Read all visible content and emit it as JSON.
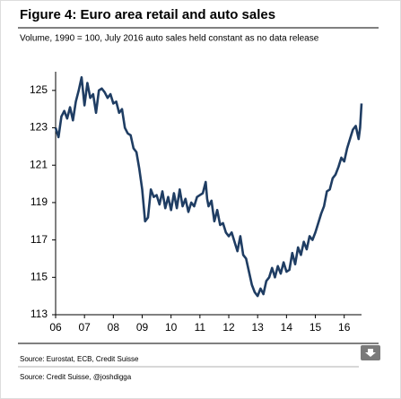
{
  "chart_data": {
    "type": "line",
    "title": "Figure 4: Euro area retail and auto sales",
    "subtitle": "Volume, 1990 = 100, July 2016 auto sales held constant as no data release",
    "source": "Source: Eurostat, ECB, Credit Suisse",
    "xlim": [
      2006,
      2016.6
    ],
    "xticks": [
      {
        "value": 2006,
        "label": "06"
      },
      {
        "value": 2007,
        "label": "07"
      },
      {
        "value": 2008,
        "label": "08"
      },
      {
        "value": 2009,
        "label": "09"
      },
      {
        "value": 2010,
        "label": "10"
      },
      {
        "value": 2011,
        "label": "11"
      },
      {
        "value": 2012,
        "label": "12"
      },
      {
        "value": 2013,
        "label": "13"
      },
      {
        "value": 2014,
        "label": "14"
      },
      {
        "value": 2015,
        "label": "15"
      },
      {
        "value": 2016,
        "label": "16"
      }
    ],
    "ylim": [
      113,
      126
    ],
    "yticks": [
      113,
      115,
      117,
      119,
      121,
      123,
      125
    ],
    "x": [
      2006.0,
      2006.1,
      2006.2,
      2006.3,
      2006.4,
      2006.5,
      2006.6,
      2006.7,
      2006.8,
      2006.9,
      2007.0,
      2007.1,
      2007.2,
      2007.3,
      2007.4,
      2007.5,
      2007.6,
      2007.7,
      2007.8,
      2007.9,
      2008.0,
      2008.1,
      2008.2,
      2008.3,
      2008.4,
      2008.5,
      2008.6,
      2008.7,
      2008.8,
      2008.9,
      2009.0,
      2009.1,
      2009.2,
      2009.3,
      2009.4,
      2009.5,
      2009.6,
      2009.7,
      2009.8,
      2009.9,
      2010.0,
      2010.1,
      2010.2,
      2010.3,
      2010.4,
      2010.5,
      2010.6,
      2010.7,
      2010.8,
      2010.9,
      2011.0,
      2011.1,
      2011.2,
      2011.25,
      2011.3,
      2011.4,
      2011.5,
      2011.6,
      2011.7,
      2011.8,
      2011.9,
      2012.0,
      2012.1,
      2012.2,
      2012.3,
      2012.4,
      2012.5,
      2012.6,
      2012.7,
      2012.8,
      2012.9,
      2013.0,
      2013.1,
      2013.2,
      2013.3,
      2013.4,
      2013.5,
      2013.6,
      2013.7,
      2013.8,
      2013.9,
      2014.0,
      2014.1,
      2014.2,
      2014.3,
      2014.4,
      2014.5,
      2014.6,
      2014.7,
      2014.8,
      2014.9,
      2015.0,
      2015.1,
      2015.2,
      2015.3,
      2015.4,
      2015.5,
      2015.6,
      2015.7,
      2015.8,
      2015.9,
      2016.0,
      2016.1,
      2016.2,
      2016.3,
      2016.4,
      2016.5,
      2016.55,
      2016.6
    ],
    "series": [
      {
        "color": "#1f3d63",
        "values": [
          123.0,
          122.5,
          123.6,
          123.9,
          123.5,
          124.1,
          123.4,
          124.4,
          125.0,
          125.7,
          124.2,
          125.4,
          124.6,
          124.8,
          123.8,
          125.0,
          125.1,
          124.9,
          124.6,
          124.8,
          124.3,
          124.4,
          123.8,
          124.0,
          123.0,
          122.7,
          122.6,
          121.9,
          121.7,
          120.8,
          119.7,
          118.0,
          118.2,
          119.7,
          119.3,
          119.4,
          118.9,
          119.6,
          118.7,
          119.3,
          118.6,
          119.5,
          118.7,
          119.7,
          118.8,
          119.2,
          118.5,
          119.0,
          118.8,
          119.3,
          119.4,
          119.5,
          120.1,
          119.2,
          118.8,
          119.1,
          118.0,
          118.6,
          117.8,
          117.9,
          117.4,
          117.2,
          117.4,
          116.9,
          116.4,
          117.2,
          116.2,
          116.0,
          115.3,
          114.6,
          114.2,
          114.0,
          114.4,
          114.1,
          114.8,
          115.0,
          115.5,
          115.0,
          115.6,
          115.2,
          115.8,
          115.3,
          115.4,
          116.3,
          115.7,
          116.6,
          116.2,
          116.9,
          116.5,
          117.2,
          117.0,
          117.4,
          117.9,
          118.4,
          118.8,
          119.6,
          119.7,
          120.3,
          120.5,
          120.9,
          121.4,
          121.2,
          121.9,
          122.4,
          122.9,
          123.1,
          122.4,
          123.0,
          124.3
        ]
      }
    ]
  },
  "caption": "Source: Credit Suisse, @joshdigga"
}
